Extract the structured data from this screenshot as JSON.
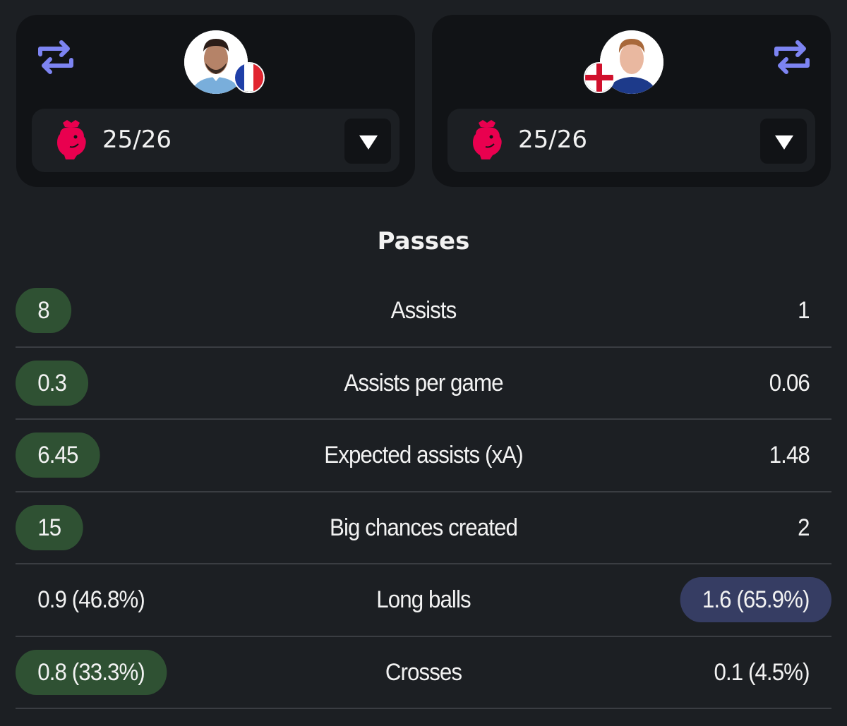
{
  "players": [
    {
      "side": "left",
      "flag": "france",
      "season": "25/26",
      "competition_icon": "premier-league-logo",
      "swap_icon": "swap-icon"
    },
    {
      "side": "right",
      "flag": "england",
      "season": "25/26",
      "competition_icon": "premier-league-logo",
      "swap_icon": "swap-icon"
    }
  ],
  "section_title": "Passes",
  "colors": {
    "highlight_left": "#2f5133",
    "highlight_right": "#363d63",
    "accent_swap": "#7d84f2",
    "premier_league": "#e9004f"
  },
  "stats": [
    {
      "label": "Assists",
      "left": "8",
      "right": "1",
      "highlight": "left"
    },
    {
      "label": "Assists per game",
      "left": "0.3",
      "right": "0.06",
      "highlight": "left"
    },
    {
      "label": "Expected assists (xA)",
      "left": "6.45",
      "right": "1.48",
      "highlight": "left"
    },
    {
      "label": "Big chances created",
      "left": "15",
      "right": "2",
      "highlight": "left"
    },
    {
      "label": "Long balls",
      "left": "0.9 (46.8%)",
      "right": "1.6 (65.9%)",
      "highlight": "right"
    },
    {
      "label": "Crosses",
      "left": "0.8 (33.3%)",
      "right": "0.1 (4.5%)",
      "highlight": "left"
    }
  ]
}
